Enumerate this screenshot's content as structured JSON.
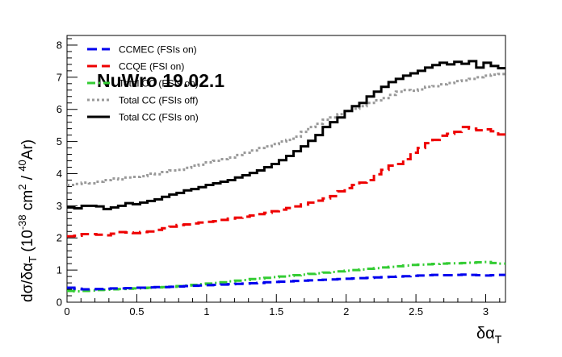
{
  "colors": {
    "ccmec": "#0000ee",
    "ccqe": "#ee0000",
    "cc1pi": "#33cc33",
    "total_off": "#999999",
    "total_on": "#000000"
  },
  "chart_data": {
    "type": "line",
    "style": "step-histogram",
    "watermark": "NuWro 19.02.1",
    "xlabel": "δα_T",
    "ylabel": "dσ/δα_T (10^-38 cm^2 / ^40Ar)",
    "xlim": [
      0,
      3.1416
    ],
    "ylim": [
      0,
      8.3
    ],
    "x_ticks": [
      "0",
      "0.5",
      "1",
      "1.5",
      "2",
      "2.5",
      "3"
    ],
    "y_ticks": [
      "0",
      "1",
      "2",
      "3",
      "4",
      "5",
      "6",
      "7",
      "8"
    ],
    "grid": false,
    "legend_position": "top-left",
    "bins": 60,
    "series": [
      {
        "name": "CCMEC (FSIs on)",
        "key": "ccmec",
        "dash": "long-dash",
        "values": [
          0.45,
          0.42,
          0.4,
          0.4,
          0.41,
          0.42,
          0.43,
          0.43,
          0.44,
          0.45,
          0.45,
          0.46,
          0.47,
          0.47,
          0.48,
          0.49,
          0.5,
          0.51,
          0.52,
          0.53,
          0.54,
          0.55,
          0.56,
          0.57,
          0.58,
          0.59,
          0.6,
          0.62,
          0.63,
          0.64,
          0.65,
          0.66,
          0.67,
          0.68,
          0.69,
          0.7,
          0.71,
          0.72,
          0.73,
          0.74,
          0.75,
          0.76,
          0.77,
          0.78,
          0.79,
          0.8,
          0.81,
          0.82,
          0.83,
          0.84,
          0.85,
          0.84,
          0.84,
          0.85,
          0.86,
          0.85,
          0.84,
          0.83,
          0.84,
          0.85
        ]
      },
      {
        "name": "CCQE (FSI on)",
        "key": "ccqe",
        "dash": "long-dash",
        "values": [
          2.05,
          2.07,
          2.12,
          2.12,
          2.1,
          2.08,
          2.13,
          2.18,
          2.17,
          2.15,
          2.18,
          2.2,
          2.25,
          2.3,
          2.35,
          2.4,
          2.42,
          2.45,
          2.48,
          2.5,
          2.52,
          2.56,
          2.6,
          2.63,
          2.66,
          2.7,
          2.74,
          2.78,
          2.83,
          2.88,
          2.93,
          2.98,
          3.04,
          3.1,
          3.16,
          3.23,
          3.3,
          3.45,
          3.55,
          3.65,
          3.72,
          3.8,
          3.98,
          4.12,
          4.25,
          4.3,
          4.45,
          4.65,
          4.8,
          4.95,
          5.05,
          5.18,
          5.24,
          5.3,
          5.45,
          5.4,
          5.35,
          5.38,
          5.32,
          5.22
        ]
      },
      {
        "name": "Total CC (FSIs on)",
        "key": "cc1pi",
        "legend_label_obscured": "Total CC (FSIs on)",
        "dash": "dash-dot",
        "values": [
          0.35,
          0.34,
          0.35,
          0.36,
          0.38,
          0.39,
          0.4,
          0.41,
          0.42,
          0.43,
          0.44,
          0.45,
          0.46,
          0.47,
          0.48,
          0.5,
          0.52,
          0.54,
          0.56,
          0.58,
          0.6,
          0.62,
          0.65,
          0.67,
          0.69,
          0.72,
          0.74,
          0.76,
          0.78,
          0.8,
          0.82,
          0.84,
          0.86,
          0.88,
          0.9,
          0.92,
          0.94,
          0.96,
          0.98,
          1.0,
          1.02,
          1.04,
          1.06,
          1.08,
          1.1,
          1.12,
          1.14,
          1.16,
          1.17,
          1.18,
          1.19,
          1.2,
          1.21,
          1.21,
          1.22,
          1.23,
          1.24,
          1.25,
          1.22,
          1.2
        ]
      },
      {
        "name": "Total CC (FSIs off)",
        "key": "total_off",
        "dash": "dotted",
        "values": [
          3.65,
          3.68,
          3.72,
          3.7,
          3.75,
          3.8,
          3.85,
          3.82,
          3.88,
          3.9,
          3.92,
          4.0,
          3.98,
          4.05,
          4.1,
          4.12,
          4.18,
          4.25,
          4.28,
          4.35,
          4.4,
          4.45,
          4.5,
          4.58,
          4.65,
          4.72,
          4.8,
          4.85,
          4.92,
          5.0,
          5.05,
          5.15,
          5.3,
          5.45,
          5.55,
          5.68,
          5.75,
          5.85,
          5.95,
          6.02,
          6.1,
          6.2,
          6.28,
          6.35,
          6.45,
          6.55,
          6.6,
          6.58,
          6.62,
          6.7,
          6.72,
          6.78,
          6.82,
          6.88,
          6.9,
          6.95,
          7.0,
          7.05,
          7.08,
          7.1
        ]
      },
      {
        "name": "Total CC (FSIs on)",
        "key": "total_on",
        "dash": "solid",
        "values": [
          2.95,
          2.92,
          3.0,
          3.0,
          2.98,
          2.9,
          2.95,
          3.0,
          3.08,
          3.05,
          3.1,
          3.15,
          3.2,
          3.28,
          3.35,
          3.4,
          3.48,
          3.52,
          3.58,
          3.65,
          3.7,
          3.75,
          3.8,
          3.88,
          3.95,
          4.02,
          4.1,
          4.2,
          4.3,
          4.42,
          4.55,
          4.7,
          4.85,
          5.02,
          5.2,
          5.45,
          5.6,
          5.75,
          5.95,
          6.1,
          6.2,
          6.4,
          6.55,
          6.7,
          6.85,
          6.95,
          7.05,
          7.12,
          7.2,
          7.3,
          7.38,
          7.45,
          7.4,
          7.48,
          7.42,
          7.5,
          7.3,
          7.45,
          7.35,
          7.28
        ]
      }
    ]
  }
}
